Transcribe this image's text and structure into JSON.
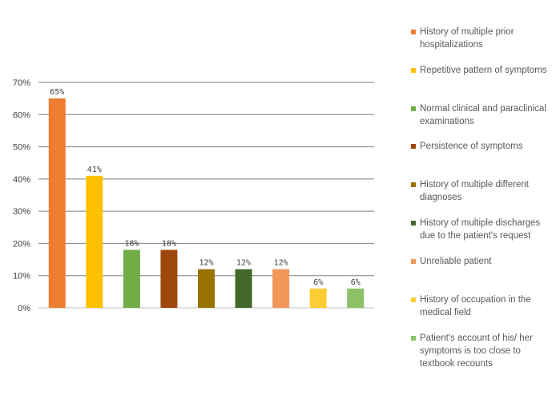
{
  "chart_data": {
    "type": "bar",
    "categories": [
      "History of multiple prior hospitalizations",
      "Repetitive pattern of symptoms",
      "Normal clinical and paraclinical examinations",
      "Persistence of symptoms",
      "History of multiple different diagnoses",
      "History of multiple discharges due to the patient's request",
      "Unreliable patient",
      "History of occupation in the medical field",
      "Patient's account of his/ her symptoms is too close to textbook recounts"
    ],
    "values": [
      65,
      41,
      18,
      18,
      12,
      12,
      12,
      6,
      6
    ],
    "data_labels": [
      "65%",
      "41%",
      "18%",
      "18%",
      "12%",
      "12%",
      "12%",
      "6%",
      "6%"
    ],
    "colors": [
      "#ED7D31",
      "#FFC000",
      "#70AD47",
      "#9E480E",
      "#997300",
      "#43682B",
      "#F1975A",
      "#FFCD33",
      "#8CC168"
    ],
    "yticks": [
      "0%",
      "10%",
      "20%",
      "30%",
      "40%",
      "50%",
      "60%",
      "70%"
    ],
    "ylim": [
      0,
      70
    ],
    "grid": true,
    "legend_position": "right",
    "title": "",
    "xlabel": "",
    "ylabel": ""
  }
}
